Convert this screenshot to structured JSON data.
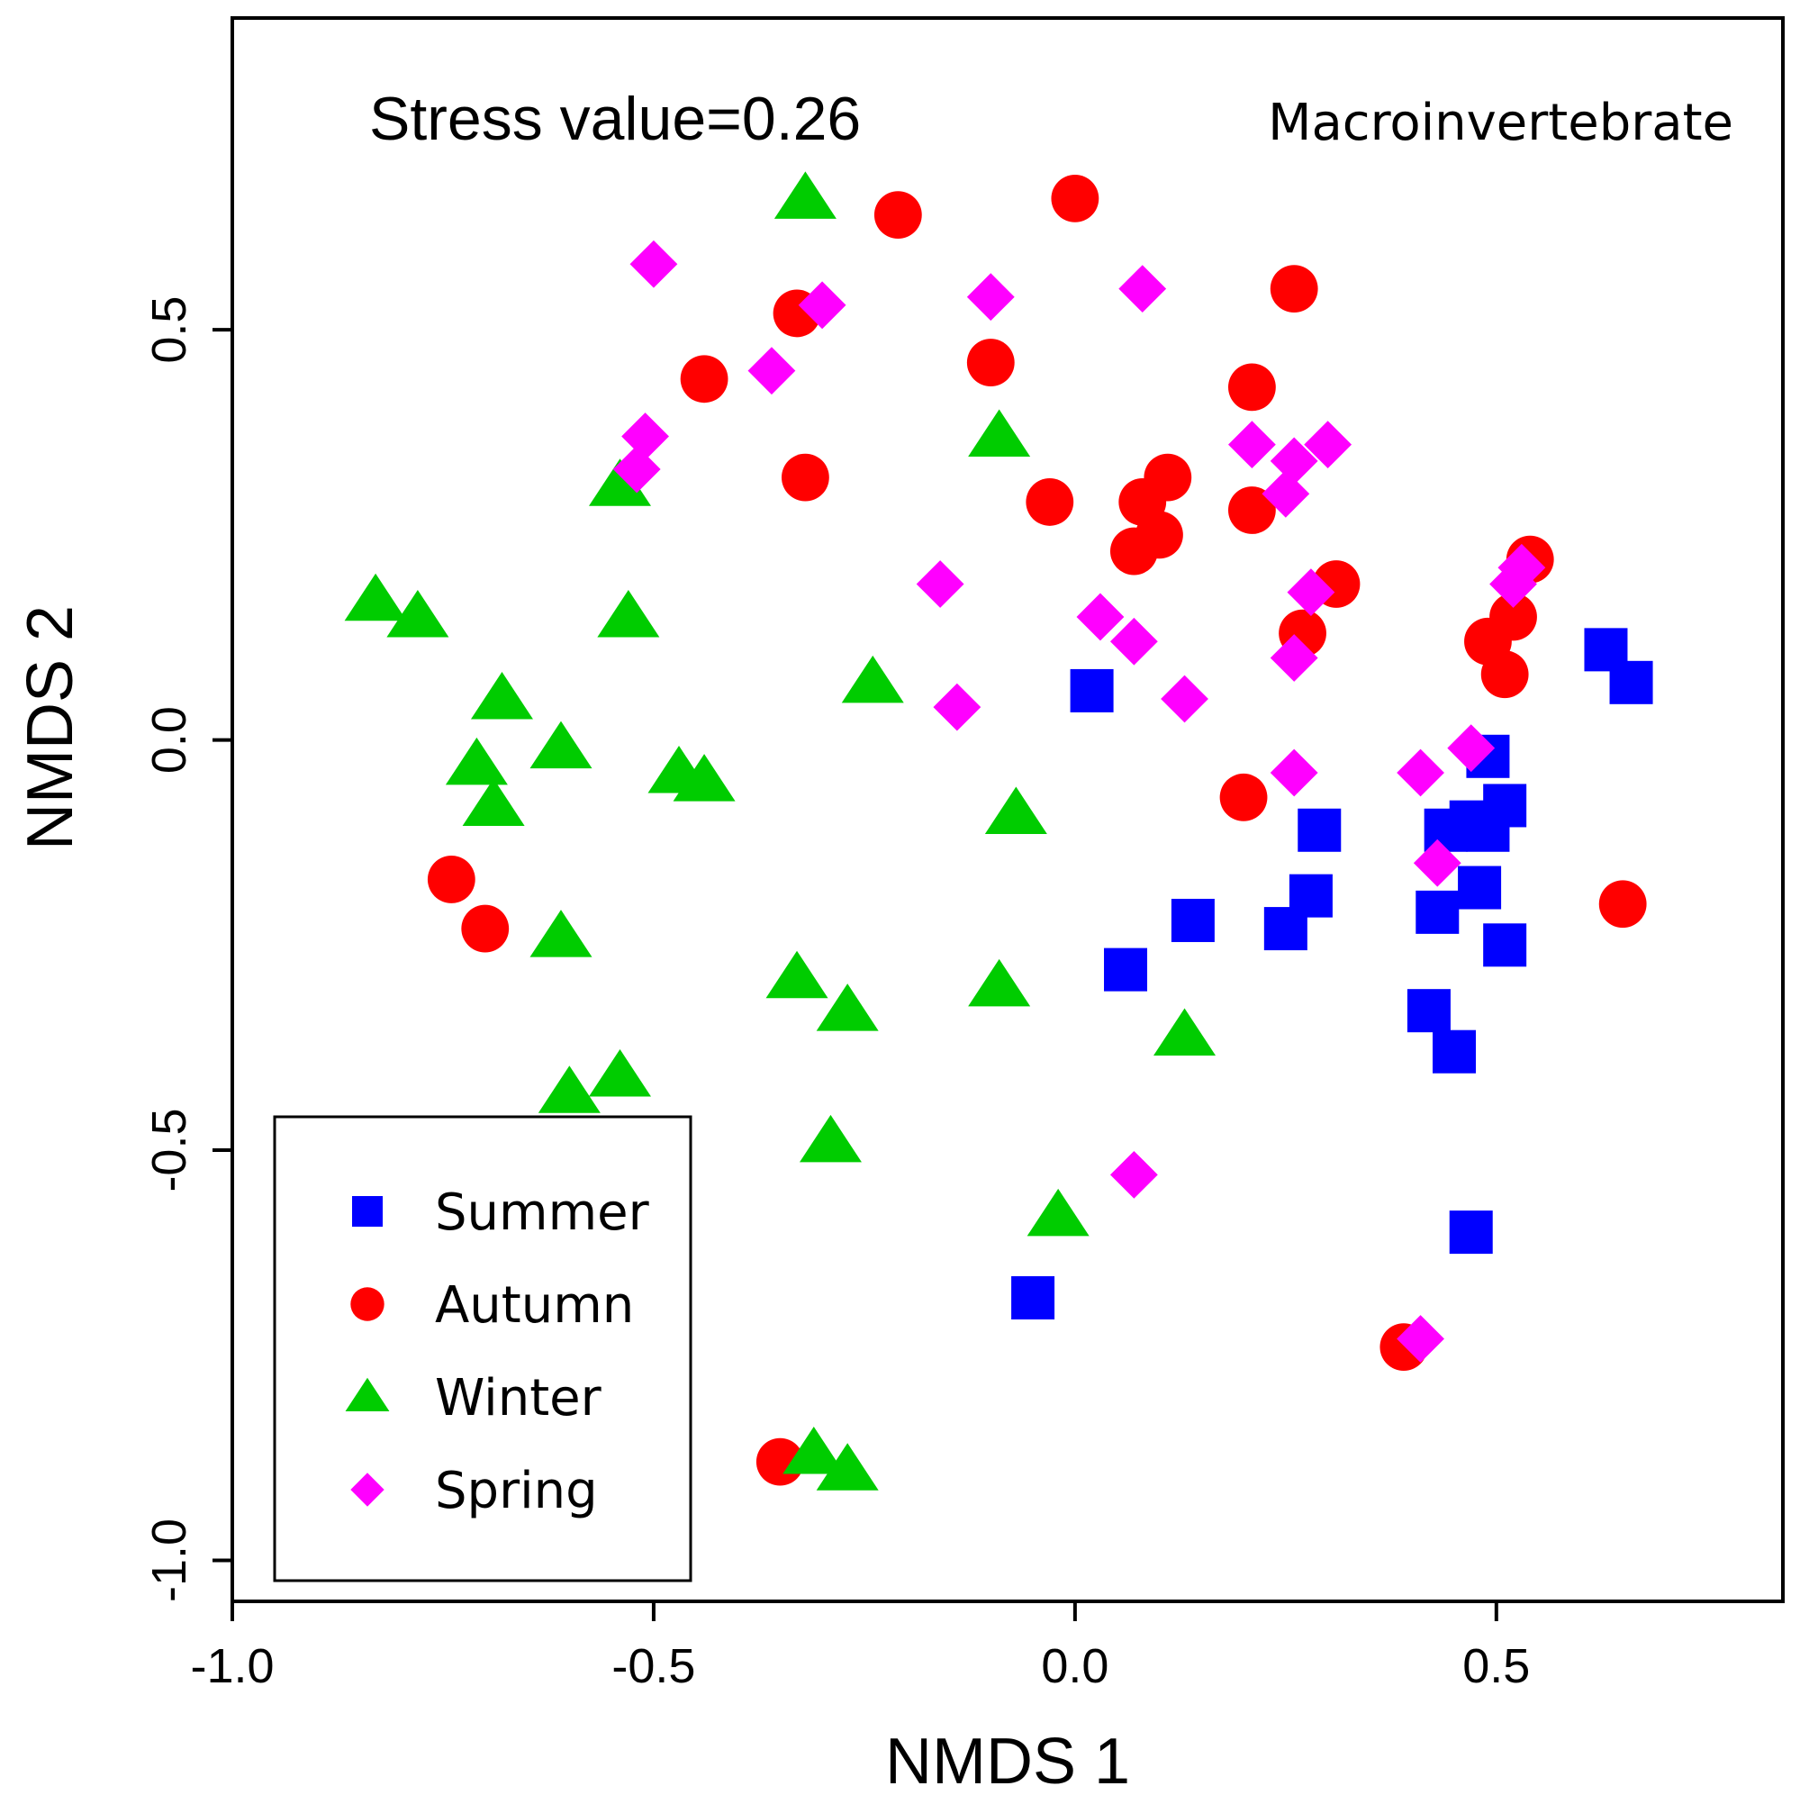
{
  "chart_data": {
    "type": "scatter",
    "stress_text": "Stress value=0.26",
    "panel_label": "Macroinvertebrate",
    "xlabel": "NMDS 1",
    "ylabel": "NMDS 2",
    "xlim": [
      -1.0,
      0.84
    ],
    "ylim": [
      -1.05,
      0.88
    ],
    "x_ticks": [
      -1.0,
      -0.5,
      0.0,
      0.5
    ],
    "x_tick_labels": [
      "-1.0",
      "-0.5",
      "0.0",
      "0.5"
    ],
    "y_ticks": [
      -1.0,
      -0.5,
      0.0,
      0.5
    ],
    "y_tick_labels": [
      "-1.0",
      "-0.5",
      "0.0",
      "0.5"
    ],
    "legend_position": "bottom-left",
    "series": [
      {
        "name": "Summer",
        "marker": "square",
        "color": "#0000ff",
        "points": [
          [
            0.02,
            0.06
          ],
          [
            0.63,
            0.11
          ],
          [
            0.66,
            0.07
          ],
          [
            0.49,
            -0.02
          ],
          [
            0.51,
            -0.08
          ],
          [
            0.47,
            -0.1
          ],
          [
            0.44,
            -0.11
          ],
          [
            0.49,
            -0.11
          ],
          [
            0.29,
            -0.11
          ],
          [
            0.48,
            -0.18
          ],
          [
            0.28,
            -0.19
          ],
          [
            0.43,
            -0.21
          ],
          [
            0.25,
            -0.23
          ],
          [
            0.14,
            -0.22
          ],
          [
            0.51,
            -0.25
          ],
          [
            0.06,
            -0.28
          ],
          [
            0.42,
            -0.33
          ],
          [
            0.45,
            -0.38
          ],
          [
            0.47,
            -0.6
          ],
          [
            -0.05,
            -0.68
          ]
        ]
      },
      {
        "name": "Autumn",
        "marker": "circle",
        "color": "#ff0000",
        "points": [
          [
            0.0,
            0.66
          ],
          [
            -0.21,
            0.64
          ],
          [
            0.26,
            0.55
          ],
          [
            -0.33,
            0.52
          ],
          [
            -0.44,
            0.44
          ],
          [
            -0.1,
            0.46
          ],
          [
            0.21,
            0.43
          ],
          [
            -0.32,
            0.32
          ],
          [
            -0.03,
            0.29
          ],
          [
            0.11,
            0.32
          ],
          [
            0.08,
            0.29
          ],
          [
            0.21,
            0.28
          ],
          [
            0.1,
            0.25
          ],
          [
            0.07,
            0.23
          ],
          [
            0.31,
            0.19
          ],
          [
            0.27,
            0.13
          ],
          [
            0.54,
            0.22
          ],
          [
            0.52,
            0.15
          ],
          [
            0.49,
            0.12
          ],
          [
            0.51,
            0.08
          ],
          [
            0.2,
            -0.07
          ],
          [
            -0.74,
            -0.17
          ],
          [
            -0.7,
            -0.23
          ],
          [
            0.65,
            -0.2
          ],
          [
            0.39,
            -0.74
          ],
          [
            -0.35,
            -0.88
          ]
        ]
      },
      {
        "name": "Winter",
        "marker": "triangle",
        "color": "#00cc00",
        "points": [
          [
            -0.32,
            0.66
          ],
          [
            -0.09,
            0.37
          ],
          [
            -0.54,
            0.31
          ],
          [
            -0.83,
            0.17
          ],
          [
            -0.78,
            0.15
          ],
          [
            -0.53,
            0.15
          ],
          [
            -0.24,
            0.07
          ],
          [
            -0.68,
            0.05
          ],
          [
            -0.61,
            -0.01
          ],
          [
            -0.71,
            -0.03
          ],
          [
            -0.47,
            -0.04
          ],
          [
            -0.44,
            -0.05
          ],
          [
            -0.69,
            -0.08
          ],
          [
            -0.07,
            -0.09
          ],
          [
            -0.61,
            -0.24
          ],
          [
            -0.33,
            -0.29
          ],
          [
            -0.09,
            -0.3
          ],
          [
            -0.27,
            -0.33
          ],
          [
            0.13,
            -0.36
          ],
          [
            -0.6,
            -0.43
          ],
          [
            -0.54,
            -0.41
          ],
          [
            -0.29,
            -0.49
          ],
          [
            -0.02,
            -0.58
          ],
          [
            -0.31,
            -0.87
          ],
          [
            -0.27,
            -0.89
          ]
        ]
      },
      {
        "name": "Spring",
        "marker": "diamond",
        "color": "#ff00ff",
        "points": [
          [
            -0.5,
            0.58
          ],
          [
            -0.1,
            0.54
          ],
          [
            0.08,
            0.55
          ],
          [
            -0.3,
            0.53
          ],
          [
            -0.36,
            0.45
          ],
          [
            -0.51,
            0.37
          ],
          [
            -0.52,
            0.33
          ],
          [
            0.21,
            0.36
          ],
          [
            0.26,
            0.34
          ],
          [
            0.3,
            0.36
          ],
          [
            0.25,
            0.3
          ],
          [
            -0.16,
            0.19
          ],
          [
            0.03,
            0.15
          ],
          [
            0.07,
            0.12
          ],
          [
            0.28,
            0.18
          ],
          [
            0.53,
            0.21
          ],
          [
            0.52,
            0.19
          ],
          [
            0.26,
            0.1
          ],
          [
            -0.14,
            0.04
          ],
          [
            0.13,
            0.05
          ],
          [
            0.26,
            -0.04
          ],
          [
            0.41,
            -0.04
          ],
          [
            0.47,
            -0.01
          ],
          [
            0.43,
            -0.15
          ],
          [
            0.07,
            -0.53
          ],
          [
            0.41,
            -0.73
          ]
        ]
      }
    ]
  }
}
